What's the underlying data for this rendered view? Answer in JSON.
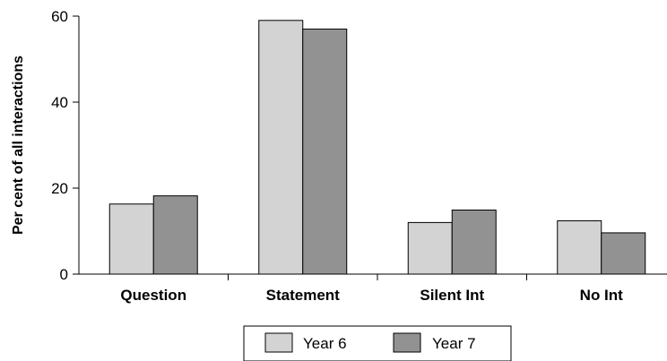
{
  "chart_data": {
    "type": "bar",
    "categories": [
      "Question",
      "Statement",
      "Silent Int",
      "No Int"
    ],
    "series": [
      {
        "name": "Year 6",
        "values": [
          16.3,
          59.0,
          12.0,
          12.4
        ],
        "color": "#d3d3d3"
      },
      {
        "name": "Year 7",
        "values": [
          18.2,
          57.0,
          14.9,
          9.6
        ],
        "color": "#929292"
      }
    ],
    "ylabel": "Per cent of all interactions",
    "xlabel": "",
    "ylim": [
      0,
      60
    ],
    "yticks": [
      "0",
      "20",
      "40",
      "60"
    ],
    "grid": false,
    "legend_position": "bottom-center"
  }
}
